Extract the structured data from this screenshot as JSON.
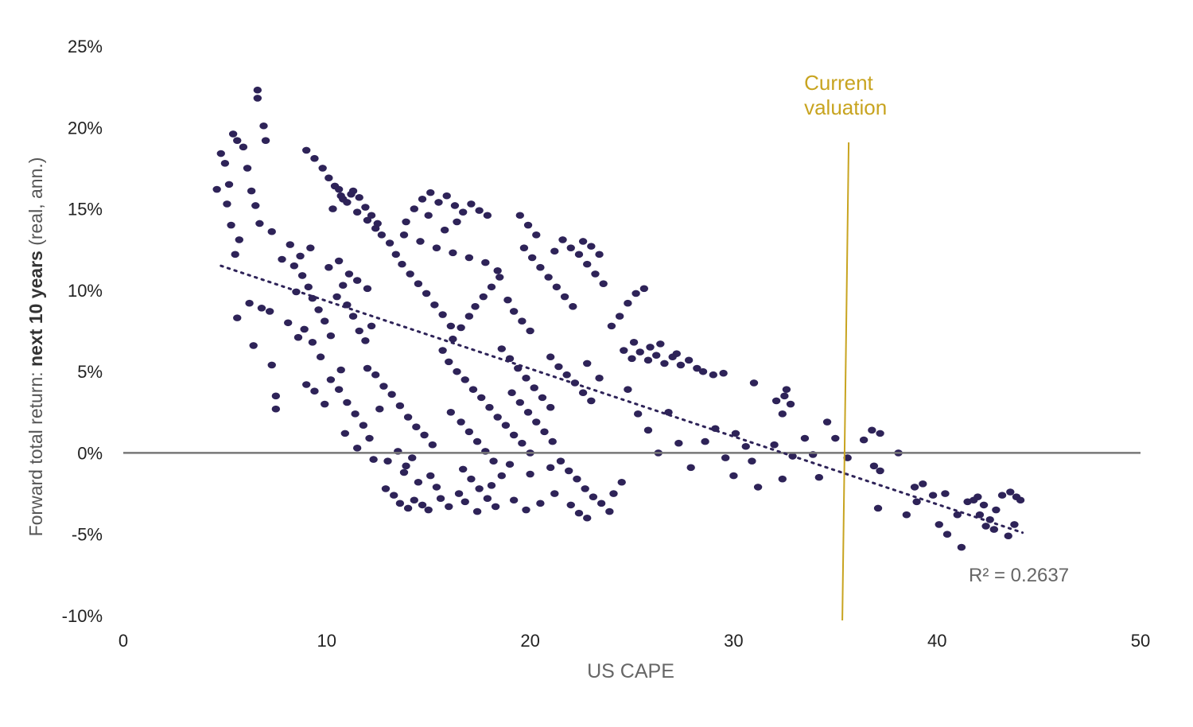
{
  "chart_data": {
    "type": "scatter",
    "xlabel": "US CAPE",
    "ylabel_prefix": "Forward total return: ",
    "ylabel_bold": "next 10 years",
    "ylabel_suffix": " (real, ann.)",
    "xlim": [
      0,
      50
    ],
    "ylim": [
      -10,
      25
    ],
    "x_ticks": [
      0,
      10,
      20,
      30,
      40,
      50
    ],
    "x_tick_labels": [
      "0",
      "10",
      "20",
      "30",
      "40",
      "50"
    ],
    "y_ticks": [
      25,
      20,
      15,
      10,
      5,
      0,
      -5,
      -10
    ],
    "y_tick_labels": [
      "25%",
      "20%",
      "15%",
      "10%",
      "5%",
      "0%",
      "-5%",
      "-10%"
    ],
    "grid": false,
    "zero_line": true,
    "current_valuation": {
      "label_line1": "Current",
      "label_line2": "valuation",
      "x": 35.5,
      "color": "#c8a420"
    },
    "trendline": {
      "style": "dotted",
      "x_start": 4.8,
      "y_start": 11.5,
      "x_end": 44.2,
      "y_end": -4.9
    },
    "r_squared_label": "R² = 0.2637",
    "point_color": "#2e2358",
    "points": [
      [
        4.6,
        16.2
      ],
      [
        4.8,
        18.4
      ],
      [
        5.0,
        17.8
      ],
      [
        5.2,
        16.5
      ],
      [
        5.4,
        19.6
      ],
      [
        5.6,
        19.2
      ],
      [
        5.9,
        18.8
      ],
      [
        6.1,
        17.5
      ],
      [
        6.3,
        16.1
      ],
      [
        6.5,
        15.2
      ],
      [
        6.6,
        21.8
      ],
      [
        6.6,
        22.3
      ],
      [
        6.9,
        20.1
      ],
      [
        7.0,
        19.2
      ],
      [
        6.7,
        14.1
      ],
      [
        7.3,
        13.6
      ],
      [
        5.3,
        14.0
      ],
      [
        5.5,
        12.2
      ],
      [
        5.1,
        15.3
      ],
      [
        5.7,
        13.1
      ],
      [
        5.6,
        8.3
      ],
      [
        6.2,
        9.2
      ],
      [
        6.8,
        8.9
      ],
      [
        6.4,
        6.6
      ],
      [
        7.3,
        5.4
      ],
      [
        7.5,
        3.5
      ],
      [
        7.5,
        2.7
      ],
      [
        7.2,
        8.7
      ],
      [
        7.8,
        11.9
      ],
      [
        8.2,
        12.8
      ],
      [
        8.4,
        11.5
      ],
      [
        8.8,
        10.9
      ],
      [
        9.1,
        10.2
      ],
      [
        9.3,
        9.5
      ],
      [
        9.6,
        8.8
      ],
      [
        9.9,
        8.1
      ],
      [
        10.2,
        7.2
      ],
      [
        10.5,
        9.6
      ],
      [
        10.8,
        10.3
      ],
      [
        11.0,
        9.1
      ],
      [
        11.3,
        8.4
      ],
      [
        11.6,
        7.5
      ],
      [
        11.9,
        6.9
      ],
      [
        12.2,
        7.8
      ],
      [
        8.5,
        9.9
      ],
      [
        8.9,
        7.6
      ],
      [
        9.3,
        6.8
      ],
      [
        9.7,
        5.9
      ],
      [
        8.1,
        8.0
      ],
      [
        8.6,
        7.1
      ],
      [
        9.0,
        4.2
      ],
      [
        9.4,
        3.8
      ],
      [
        9.9,
        3.0
      ],
      [
        8.7,
        12.1
      ],
      [
        9.2,
        12.6
      ],
      [
        10.1,
        11.4
      ],
      [
        10.6,
        11.8
      ],
      [
        11.1,
        11.0
      ],
      [
        11.5,
        10.6
      ],
      [
        12.0,
        10.1
      ],
      [
        9.0,
        18.6
      ],
      [
        9.4,
        18.1
      ],
      [
        9.8,
        17.5
      ],
      [
        10.1,
        16.9
      ],
      [
        10.4,
        16.4
      ],
      [
        10.7,
        15.8
      ],
      [
        11.0,
        15.4
      ],
      [
        11.3,
        16.1
      ],
      [
        11.6,
        15.7
      ],
      [
        11.9,
        15.1
      ],
      [
        12.2,
        14.6
      ],
      [
        12.5,
        14.1
      ],
      [
        10.3,
        15.0
      ],
      [
        10.8,
        15.6
      ],
      [
        11.5,
        14.8
      ],
      [
        12.0,
        14.3
      ],
      [
        12.4,
        13.8
      ],
      [
        10.6,
        16.2
      ],
      [
        11.2,
        15.9
      ],
      [
        12.7,
        13.4
      ],
      [
        10.2,
        4.5
      ],
      [
        10.6,
        3.9
      ],
      [
        11.0,
        3.1
      ],
      [
        11.4,
        2.4
      ],
      [
        11.8,
        1.7
      ],
      [
        12.1,
        0.9
      ],
      [
        10.9,
        1.2
      ],
      [
        11.5,
        0.3
      ],
      [
        12.3,
        -0.4
      ],
      [
        10.7,
        5.1
      ],
      [
        12.0,
        5.2
      ],
      [
        12.4,
        4.8
      ],
      [
        12.8,
        4.1
      ],
      [
        13.2,
        3.6
      ],
      [
        13.6,
        2.9
      ],
      [
        14.0,
        2.2
      ],
      [
        14.4,
        1.6
      ],
      [
        14.8,
        1.1
      ],
      [
        15.2,
        0.5
      ],
      [
        12.6,
        2.7
      ],
      [
        12.9,
        -2.2
      ],
      [
        13.3,
        -2.6
      ],
      [
        13.6,
        -3.1
      ],
      [
        14.0,
        -3.4
      ],
      [
        14.3,
        -2.9
      ],
      [
        14.7,
        -3.2
      ],
      [
        15.0,
        -3.5
      ],
      [
        13.8,
        -1.2
      ],
      [
        14.5,
        -1.8
      ],
      [
        15.4,
        -2.1
      ],
      [
        13.0,
        -0.5
      ],
      [
        13.5,
        0.1
      ],
      [
        13.9,
        -0.8
      ],
      [
        14.2,
        -0.3
      ],
      [
        15.1,
        -1.4
      ],
      [
        13.1,
        12.9
      ],
      [
        13.4,
        12.2
      ],
      [
        13.7,
        11.6
      ],
      [
        14.1,
        11.0
      ],
      [
        14.5,
        10.4
      ],
      [
        14.9,
        9.8
      ],
      [
        15.3,
        9.1
      ],
      [
        15.7,
        8.5
      ],
      [
        16.1,
        7.8
      ],
      [
        13.9,
        14.2
      ],
      [
        14.3,
        15.0
      ],
      [
        14.7,
        15.6
      ],
      [
        15.1,
        16.0
      ],
      [
        15.5,
        15.4
      ],
      [
        15.9,
        15.8
      ],
      [
        16.3,
        15.2
      ],
      [
        16.7,
        14.8
      ],
      [
        17.1,
        15.3
      ],
      [
        17.5,
        14.9
      ],
      [
        17.9,
        14.6
      ],
      [
        13.8,
        13.4
      ],
      [
        14.6,
        13.0
      ],
      [
        15.4,
        12.6
      ],
      [
        16.2,
        12.3
      ],
      [
        17.0,
        12.0
      ],
      [
        17.8,
        11.7
      ],
      [
        18.4,
        11.2
      ],
      [
        16.4,
        14.2
      ],
      [
        15.8,
        13.7
      ],
      [
        15.0,
        14.6
      ],
      [
        16.0,
        5.6
      ],
      [
        16.4,
        5.0
      ],
      [
        16.8,
        4.5
      ],
      [
        17.2,
        3.9
      ],
      [
        17.6,
        3.4
      ],
      [
        18.0,
        2.8
      ],
      [
        18.4,
        2.2
      ],
      [
        18.8,
        1.7
      ],
      [
        19.2,
        1.1
      ],
      [
        19.6,
        0.6
      ],
      [
        20.0,
        0.0
      ],
      [
        16.1,
        2.5
      ],
      [
        16.6,
        1.9
      ],
      [
        17.0,
        1.3
      ],
      [
        17.4,
        0.7
      ],
      [
        17.8,
        0.1
      ],
      [
        18.2,
        -0.5
      ],
      [
        16.7,
        -1.0
      ],
      [
        17.1,
        -1.6
      ],
      [
        17.5,
        -2.2
      ],
      [
        17.9,
        -2.8
      ],
      [
        18.3,
        -3.3
      ],
      [
        17.4,
        -3.6
      ],
      [
        16.5,
        -2.5
      ],
      [
        18.6,
        -1.4
      ],
      [
        15.6,
        -2.8
      ],
      [
        16.0,
        -3.3
      ],
      [
        16.8,
        -3.0
      ],
      [
        18.1,
        -2.0
      ],
      [
        19.0,
        -0.7
      ],
      [
        15.7,
        6.3
      ],
      [
        16.2,
        7.0
      ],
      [
        16.6,
        7.7
      ],
      [
        17.0,
        8.4
      ],
      [
        17.3,
        9.0
      ],
      [
        17.7,
        9.6
      ],
      [
        18.1,
        10.2
      ],
      [
        18.5,
        10.8
      ],
      [
        18.9,
        9.4
      ],
      [
        19.2,
        8.7
      ],
      [
        19.6,
        8.1
      ],
      [
        20.0,
        7.5
      ],
      [
        18.6,
        6.4
      ],
      [
        19.0,
        5.8
      ],
      [
        19.4,
        5.2
      ],
      [
        19.8,
        4.6
      ],
      [
        20.2,
        4.0
      ],
      [
        20.6,
        3.4
      ],
      [
        21.0,
        2.8
      ],
      [
        19.1,
        3.7
      ],
      [
        19.5,
        3.1
      ],
      [
        19.9,
        2.5
      ],
      [
        20.3,
        1.9
      ],
      [
        20.7,
        1.3
      ],
      [
        21.1,
        0.7
      ],
      [
        19.5,
        14.6
      ],
      [
        19.9,
        14.0
      ],
      [
        20.3,
        13.4
      ],
      [
        19.7,
        12.6
      ],
      [
        20.1,
        12.0
      ],
      [
        20.5,
        11.4
      ],
      [
        20.9,
        10.8
      ],
      [
        21.3,
        10.2
      ],
      [
        21.7,
        9.6
      ],
      [
        22.1,
        9.0
      ],
      [
        21.6,
        13.1
      ],
      [
        22.0,
        12.6
      ],
      [
        22.4,
        12.2
      ],
      [
        22.8,
        11.6
      ],
      [
        23.2,
        11.0
      ],
      [
        23.6,
        10.4
      ],
      [
        23.0,
        12.7
      ],
      [
        23.4,
        12.2
      ],
      [
        21.2,
        12.4
      ],
      [
        22.6,
        13.0
      ],
      [
        21.0,
        5.9
      ],
      [
        21.4,
        5.3
      ],
      [
        21.8,
        4.8
      ],
      [
        22.2,
        4.3
      ],
      [
        22.6,
        3.7
      ],
      [
        23.0,
        3.2
      ],
      [
        23.4,
        4.6
      ],
      [
        22.8,
        5.5
      ],
      [
        21.5,
        -0.5
      ],
      [
        21.9,
        -1.1
      ],
      [
        22.3,
        -1.6
      ],
      [
        22.7,
        -2.2
      ],
      [
        23.1,
        -2.7
      ],
      [
        23.5,
        -3.1
      ],
      [
        23.9,
        -3.6
      ],
      [
        22.0,
        -3.2
      ],
      [
        22.4,
        -3.7
      ],
      [
        22.8,
        -4.0
      ],
      [
        21.2,
        -2.5
      ],
      [
        20.5,
        -3.1
      ],
      [
        19.8,
        -3.5
      ],
      [
        19.2,
        -2.9
      ],
      [
        20.0,
        -1.3
      ],
      [
        21.0,
        -0.9
      ],
      [
        24.1,
        -2.5
      ],
      [
        24.5,
        -1.8
      ],
      [
        24.0,
        7.8
      ],
      [
        24.4,
        8.4
      ],
      [
        24.8,
        9.2
      ],
      [
        25.2,
        9.8
      ],
      [
        25.6,
        10.1
      ],
      [
        24.6,
        6.3
      ],
      [
        25.0,
        5.8
      ],
      [
        25.4,
        6.2
      ],
      [
        25.8,
        5.7
      ],
      [
        26.2,
        6.0
      ],
      [
        26.6,
        5.5
      ],
      [
        27.0,
        5.9
      ],
      [
        27.4,
        5.4
      ],
      [
        27.8,
        5.7
      ],
      [
        28.2,
        5.2
      ],
      [
        25.1,
        6.8
      ],
      [
        25.9,
        6.5
      ],
      [
        26.4,
        6.7
      ],
      [
        27.2,
        6.1
      ],
      [
        28.5,
        5.0
      ],
      [
        29.0,
        4.8
      ],
      [
        29.5,
        4.9
      ],
      [
        24.8,
        3.9
      ],
      [
        25.3,
        2.4
      ],
      [
        25.8,
        1.4
      ],
      [
        26.3,
        0.0
      ],
      [
        26.8,
        2.5
      ],
      [
        27.3,
        0.6
      ],
      [
        27.9,
        -0.9
      ],
      [
        28.6,
        0.7
      ],
      [
        29.1,
        1.5
      ],
      [
        29.6,
        -0.3
      ],
      [
        30.1,
        1.2
      ],
      [
        30.6,
        0.4
      ],
      [
        30.9,
        -0.5
      ],
      [
        31.2,
        -2.1
      ],
      [
        31.0,
        4.3
      ],
      [
        32.1,
        3.2
      ],
      [
        32.5,
        3.5
      ],
      [
        32.8,
        3.0
      ],
      [
        32.6,
        3.9
      ],
      [
        32.4,
        2.4
      ],
      [
        32.0,
        0.5
      ],
      [
        32.9,
        -0.2
      ],
      [
        33.5,
        0.9
      ],
      [
        33.9,
        -0.1
      ],
      [
        34.2,
        -1.5
      ],
      [
        32.4,
        -1.6
      ],
      [
        30.0,
        -1.4
      ],
      [
        34.6,
        1.9
      ],
      [
        35.0,
        0.9
      ],
      [
        35.6,
        -0.3
      ],
      [
        36.4,
        0.8
      ],
      [
        36.8,
        1.4
      ],
      [
        37.2,
        1.2
      ],
      [
        36.9,
        -0.8
      ],
      [
        37.2,
        -1.1
      ],
      [
        37.1,
        -3.4
      ],
      [
        38.1,
        0.0
      ],
      [
        38.5,
        -3.8
      ],
      [
        38.9,
        -2.1
      ],
      [
        39.3,
        -1.9
      ],
      [
        39.8,
        -2.6
      ],
      [
        40.1,
        -4.4
      ],
      [
        40.5,
        -5.0
      ],
      [
        41.0,
        -3.8
      ],
      [
        41.5,
        -3.0
      ],
      [
        42.0,
        -2.7
      ],
      [
        42.3,
        -3.2
      ],
      [
        42.6,
        -4.1
      ],
      [
        42.9,
        -3.5
      ],
      [
        43.2,
        -2.6
      ],
      [
        43.6,
        -2.4
      ],
      [
        43.9,
        -2.7
      ],
      [
        44.1,
        -2.9
      ],
      [
        42.1,
        -3.8
      ],
      [
        42.8,
        -4.7
      ],
      [
        43.5,
        -5.1
      ],
      [
        41.2,
        -5.8
      ],
      [
        40.4,
        -2.5
      ],
      [
        43.8,
        -4.4
      ],
      [
        42.4,
        -4.5
      ],
      [
        39.0,
        -3.0
      ],
      [
        41.8,
        -2.9
      ]
    ]
  }
}
